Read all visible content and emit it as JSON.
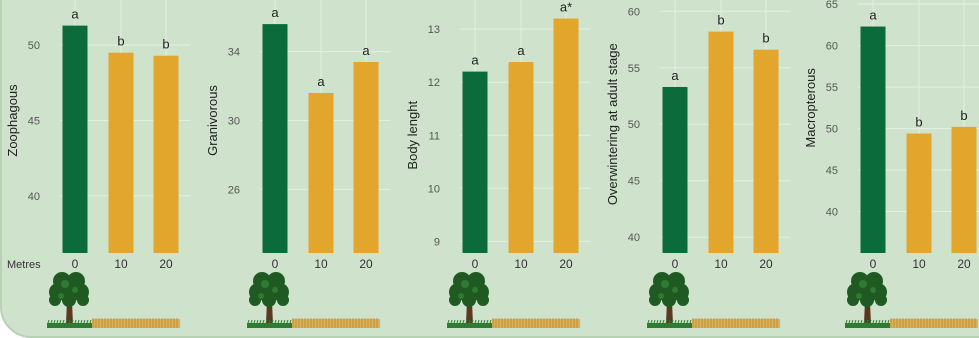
{
  "figure": {
    "x_axis_title": "Metres",
    "colors": {
      "background": "#cfe3cc",
      "border": "#b7d2b2",
      "grid": "#e4efe2",
      "forest": "#0b6b3a",
      "field": "#e2a62c",
      "text": "#333333",
      "tick": "#555555"
    },
    "illustration": {
      "tree_icon": "tree-icon",
      "grass_icon": "grass-strip-icon",
      "field_icon": "wheat-field-icon"
    }
  },
  "chart_data": [
    {
      "type": "bar",
      "ylabel": "Zoophagous",
      "categories": [
        "0",
        "10",
        "20"
      ],
      "values": [
        51.3,
        49.5,
        49.3
      ],
      "letters": [
        "a",
        "b",
        "b"
      ],
      "ylim": [
        36.2,
        53.0
      ],
      "yticks": [
        40,
        45,
        50
      ]
    },
    {
      "type": "bar",
      "ylabel": "Granivorous",
      "categories": [
        "0",
        "10",
        "20"
      ],
      "values": [
        35.6,
        31.6,
        33.4
      ],
      "letters": [
        "a",
        "a",
        "a"
      ],
      "ylim": [
        22.3,
        37.0
      ],
      "yticks": [
        26,
        30,
        34
      ]
    },
    {
      "type": "bar",
      "ylabel": "Body lenght",
      "categories": [
        "0",
        "10",
        "20"
      ],
      "values": [
        12.2,
        12.38,
        13.2
      ],
      "letters": [
        "a",
        "a",
        "a*"
      ],
      "ylim": [
        8.78,
        13.55
      ],
      "yticks": [
        9,
        10,
        11,
        12,
        13
      ]
    },
    {
      "type": "bar",
      "ylabel": "Overwintering at adult stage",
      "categories": [
        "0",
        "10",
        "20"
      ],
      "values": [
        53.3,
        58.2,
        56.6
      ],
      "letters": [
        "a",
        "b",
        "b"
      ],
      "ylim": [
        38.6,
        61.0
      ],
      "yticks": [
        40,
        45,
        50,
        55,
        60
      ]
    },
    {
      "type": "bar",
      "ylabel": "Macropterous",
      "categories": [
        "0",
        "10",
        "20"
      ],
      "values": [
        62.3,
        49.4,
        50.2
      ],
      "letters": [
        "a",
        "b",
        "b"
      ],
      "ylim": [
        35.0,
        65.5
      ],
      "yticks": [
        40,
        45,
        50,
        55,
        60,
        65
      ]
    }
  ]
}
